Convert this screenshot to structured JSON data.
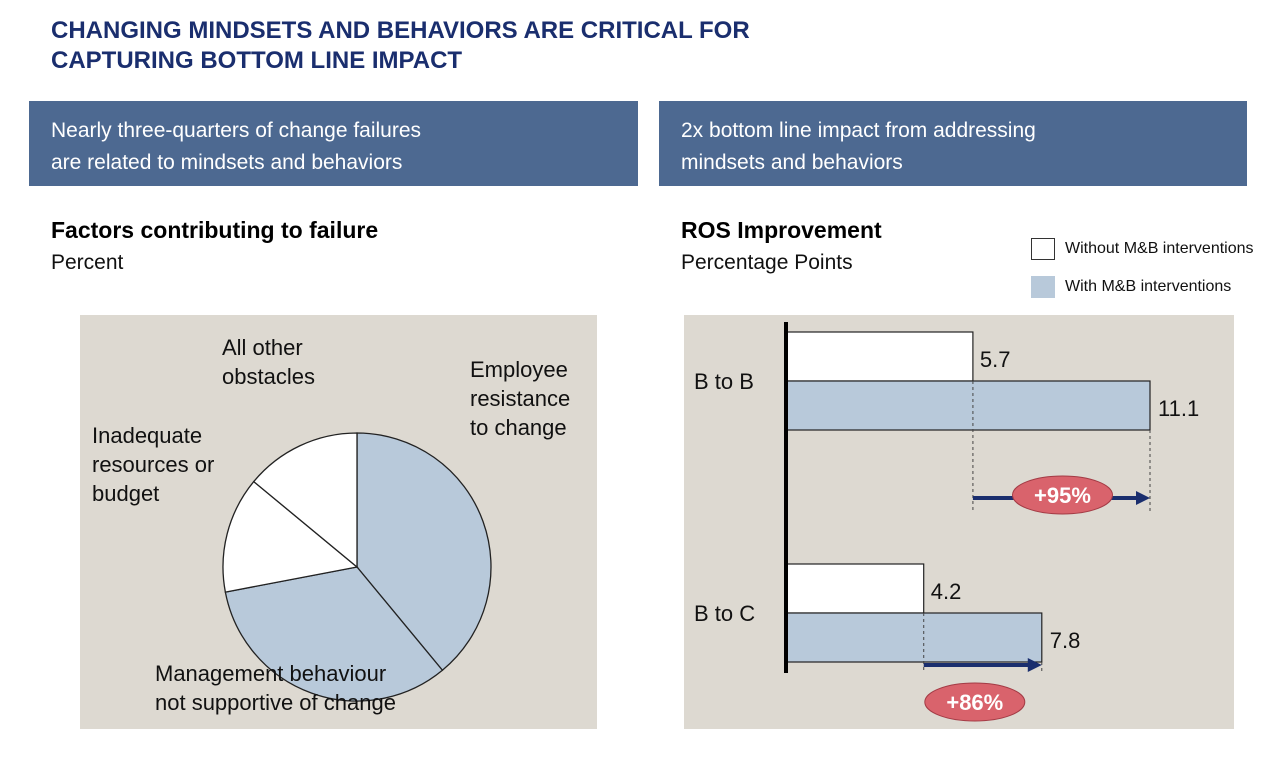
{
  "page": {
    "title_lines": [
      "CHANGING MINDSETS AND BEHAVIORS ARE CRITICAL FOR",
      "CAPTURING BOTTOM LINE IMPACT"
    ]
  },
  "left_banner": {
    "lines": [
      "Nearly three-quarters of change failures",
      "are related to mindsets and behaviors"
    ]
  },
  "right_banner": {
    "lines": [
      "2x bottom line impact from addressing",
      "mindsets and behaviors"
    ]
  },
  "colors": {
    "title": "#1a2e6e",
    "banner": "#4d6991",
    "panel_bg": "#ddd9d1",
    "slice_blue": "#b8c9da",
    "slice_white": "#ffffff",
    "bar_without": "#ffffff",
    "bar_with": "#b8c9da",
    "arrow": "#1a2e6e",
    "pill": "#d9636c"
  },
  "chart_data": [
    {
      "type": "pie",
      "title": "Factors contributing to failure",
      "subtitle": "Percent",
      "slices": [
        {
          "label_lines": [
            "Employee",
            "resistance",
            "to change"
          ],
          "value": 39,
          "color": "#b8c9da"
        },
        {
          "label_lines": [
            "Management behaviour",
            "not supportive of change"
          ],
          "value": 33,
          "color": "#b8c9da"
        },
        {
          "label_lines": [
            "Inadequate",
            "resources or",
            "budget"
          ],
          "value": 14,
          "color": "#ffffff"
        },
        {
          "label_lines": [
            "All other",
            "obstacles"
          ],
          "value": 14,
          "color": "#ffffff"
        }
      ]
    },
    {
      "type": "bar",
      "orientation": "horizontal",
      "title": "ROS Improvement",
      "subtitle": "Percentage Points",
      "categories": [
        "B to B",
        "B to C"
      ],
      "series": [
        {
          "name": "Without M&B interventions",
          "values": [
            5.7,
            4.2
          ],
          "labels": [
            "5.7",
            "4.2"
          ],
          "color": "#ffffff"
        },
        {
          "name": "With M&B interventions",
          "values": [
            11.1,
            7.8
          ],
          "labels": [
            "11.1",
            "7.8"
          ],
          "color": "#b8c9da"
        }
      ],
      "xlim": [
        0,
        11.1
      ],
      "annotations": [
        {
          "category": "B to B",
          "text": "+95%"
        },
        {
          "category": "B to C",
          "text": "+86%"
        }
      ]
    }
  ]
}
